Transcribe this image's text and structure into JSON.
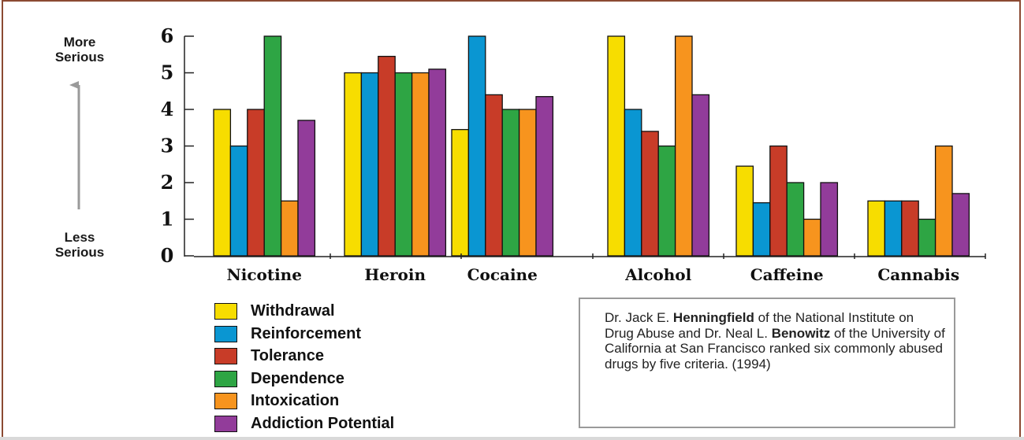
{
  "side_labels": {
    "top": [
      "More",
      "Serious"
    ],
    "bottom": [
      "Less",
      "Serious"
    ]
  },
  "chart_data": {
    "type": "bar",
    "categories": [
      "Nicotine",
      "Heroin",
      "Cocaine",
      "Alcohol",
      "Caffeine",
      "Cannabis"
    ],
    "ylim": [
      0,
      6
    ],
    "yticks": [
      0,
      1,
      2,
      3,
      4,
      5,
      6
    ],
    "legend_position": "bottom-left",
    "grid": false,
    "series": [
      {
        "name": "Withdrawal",
        "color": "#f7dd00",
        "values": [
          4.0,
          5.0,
          3.45,
          6.0,
          2.45,
          1.5
        ]
      },
      {
        "name": "Reinforcement",
        "color": "#0a96d2",
        "values": [
          3.0,
          5.0,
          6.0,
          4.0,
          1.45,
          1.5
        ]
      },
      {
        "name": "Tolerance",
        "color": "#c83c28",
        "values": [
          4.0,
          5.45,
          4.4,
          3.4,
          3.0,
          1.5
        ]
      },
      {
        "name": "Dependence",
        "color": "#2ea544",
        "values": [
          6.0,
          5.0,
          4.0,
          3.0,
          2.0,
          1.0
        ]
      },
      {
        "name": "Intoxication",
        "color": "#f7941e",
        "values": [
          1.5,
          5.0,
          4.0,
          6.0,
          1.0,
          3.0
        ]
      },
      {
        "name": "Addiction Potential",
        "color": "#923c9a",
        "values": [
          3.7,
          5.1,
          4.35,
          4.4,
          2.0,
          1.7
        ]
      }
    ]
  },
  "note": {
    "parts": [
      {
        "text": "Dr. Jack E. ",
        "bold": false
      },
      {
        "text": "Henningfield",
        "bold": true
      },
      {
        "text": " of the National Institute on Drug Abuse and Dr. Neal L. ",
        "bold": false
      },
      {
        "text": "Benowitz",
        "bold": true
      },
      {
        "text": " of the University of California at San Francisco ranked six commonly abused drugs by five criteria. (1994)",
        "bold": false
      }
    ]
  }
}
